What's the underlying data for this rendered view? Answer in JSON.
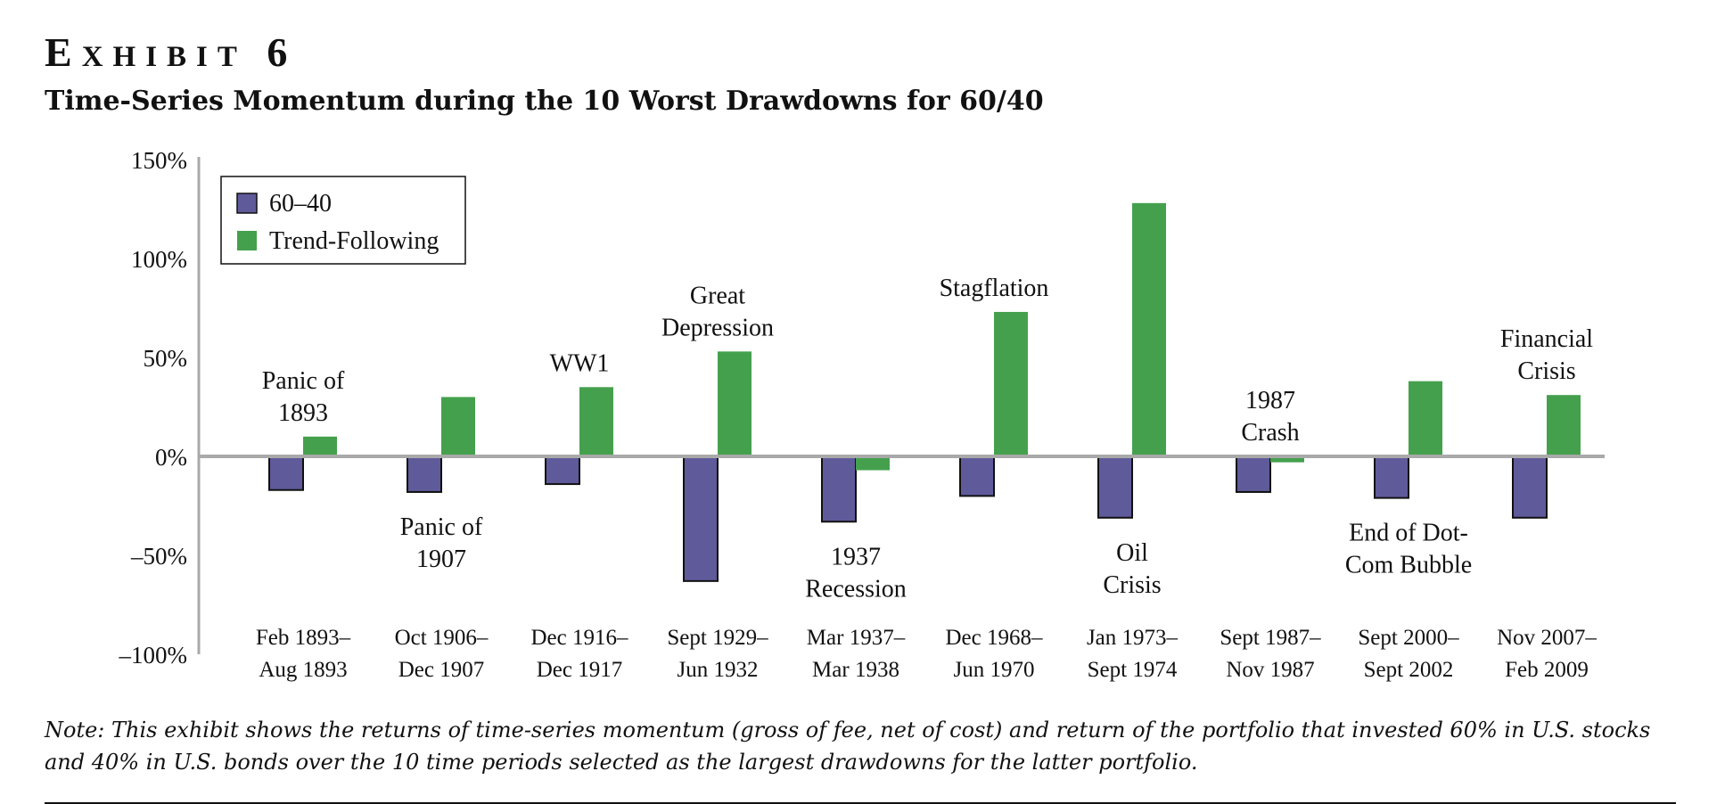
{
  "exhibit": {
    "label_initial": "E",
    "label_rest": "XHIBIT",
    "number": "6"
  },
  "title": "Time-Series Momentum during the 10 Worst Drawdowns for 60/40",
  "note": "Note: This exhibit shows the returns of time-series momentum (gross of fee, net of cost) and return of the portfolio that invested 60% in U.S. stocks and 40% in U.S. bonds over the 10 time periods selected as the largest drawdowns for the latter portfolio.",
  "chart_data": {
    "type": "bar",
    "categories": [
      [
        "Feb 1893–",
        "Aug 1893"
      ],
      [
        "Oct 1906–",
        "Dec 1907"
      ],
      [
        "Dec 1916–",
        "Dec 1917"
      ],
      [
        "Sept 1929–",
        "Jun 1932"
      ],
      [
        "Mar 1937–",
        "Mar 1938"
      ],
      [
        "Dec 1968–",
        "Jun 1970"
      ],
      [
        "Jan 1973–",
        "Sept 1974"
      ],
      [
        "Sept 1987–",
        "Nov 1987"
      ],
      [
        "Sept 2000–",
        "Sept 2002"
      ],
      [
        "Nov 2007–",
        "Feb 2009"
      ]
    ],
    "series": [
      {
        "name": "60–40",
        "color": "#5f5a9a",
        "values": [
          -17,
          -18,
          -14,
          -63,
          -33,
          -20,
          -31,
          -18,
          -21,
          -31
        ]
      },
      {
        "name": "Trend-Following",
        "color": "#45a04e",
        "values": [
          10,
          30,
          35,
          53,
          -7,
          73,
          128,
          -3,
          38,
          31
        ]
      }
    ],
    "annotations": [
      {
        "lines": [
          "Panic of",
          "1893"
        ],
        "category": 0,
        "position": "above"
      },
      {
        "lines": [
          "Panic of",
          "1907"
        ],
        "category": 1,
        "position": "below"
      },
      {
        "lines": [
          "WW1"
        ],
        "category": 2,
        "position": "above"
      },
      {
        "lines": [
          "Great",
          "Depression"
        ],
        "category": 3,
        "position": "above"
      },
      {
        "lines": [
          "1937",
          "Recession"
        ],
        "category": 4,
        "position": "below"
      },
      {
        "lines": [
          "Stagflation"
        ],
        "category": 5,
        "position": "above"
      },
      {
        "lines": [
          "Oil",
          "Crisis"
        ],
        "category": 6,
        "position": "below"
      },
      {
        "lines": [
          "1987",
          "Crash"
        ],
        "category": 7,
        "position": "above"
      },
      {
        "lines": [
          "End of Dot-",
          "Com Bubble"
        ],
        "category": 8,
        "position": "below"
      },
      {
        "lines": [
          "Financial",
          "Crisis"
        ],
        "category": 9,
        "position": "above"
      }
    ],
    "y_ticks": [
      {
        "value": 150,
        "label": "150%"
      },
      {
        "value": 100,
        "label": "100%"
      },
      {
        "value": 50,
        "label": "50%"
      },
      {
        "value": 0,
        "label": "0%"
      },
      {
        "value": -50,
        "label": "–50%"
      },
      {
        "value": -100,
        "label": "–100%"
      }
    ],
    "ylim": [
      -100,
      150
    ],
    "grid": false,
    "legend_position": "top-left"
  }
}
